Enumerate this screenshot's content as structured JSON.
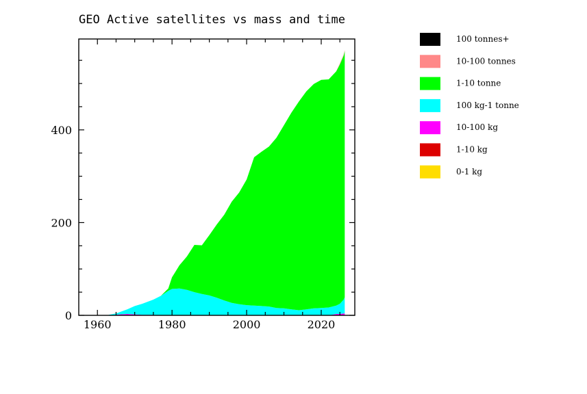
{
  "chart_data": {
    "type": "area",
    "stacked": true,
    "title": "GEO Active satellites vs mass and time",
    "xlabel": "",
    "ylabel": "",
    "xlim": [
      1955,
      2029
    ],
    "ylim": [
      0,
      596
    ],
    "x_ticks": [
      1960,
      1980,
      2000,
      2020
    ],
    "y_ticks": [
      0,
      200,
      400
    ],
    "grid": false,
    "legend_position": "right",
    "x": [
      1963,
      1965,
      1966,
      1968,
      1970,
      1972,
      1975,
      1977,
      1979,
      1980,
      1982,
      1984,
      1986,
      1988,
      1990,
      1992,
      1994,
      1996,
      1998,
      2000,
      2002,
      2004,
      2006,
      2008,
      2010,
      2012,
      2014,
      2016,
      2018,
      2020,
      2022,
      2024,
      2025,
      2026,
      2026.3
    ],
    "series": [
      {
        "name": "0-1 kg",
        "color": "#ffdd00",
        "values": [
          0,
          0,
          0,
          0,
          0,
          0,
          0,
          0,
          0,
          0,
          0,
          0,
          0,
          0,
          0,
          0,
          0,
          0,
          0,
          0,
          0,
          0,
          0,
          0,
          0,
          0,
          0,
          0,
          0,
          0,
          0,
          0,
          0,
          0,
          0
        ]
      },
      {
        "name": "1-10 kg",
        "color": "#dd0000",
        "values": [
          0,
          0,
          0,
          0,
          0,
          0,
          0,
          0,
          0,
          0,
          0,
          0,
          0,
          0,
          0,
          0,
          0,
          0,
          0,
          0,
          0,
          0,
          0,
          0,
          0,
          0,
          0,
          0,
          0,
          0,
          0,
          0,
          0,
          0,
          0
        ]
      },
      {
        "name": "10-100 kg",
        "color": "#ff00ff",
        "values": [
          0,
          1,
          2,
          3,
          2,
          1,
          1,
          0,
          0,
          0,
          0,
          0,
          0,
          0,
          0,
          0,
          0,
          0,
          0,
          0,
          0,
          0,
          0,
          0,
          0,
          0,
          0,
          0,
          0,
          0,
          0,
          3,
          3,
          4,
          4
        ]
      },
      {
        "name": "100 kg-1 tonne",
        "color": "#00ffff",
        "values": [
          1,
          3,
          5,
          10,
          18,
          24,
          33,
          42,
          53,
          57,
          58,
          55,
          50,
          46,
          43,
          38,
          32,
          27,
          24,
          22,
          21,
          20,
          19,
          16,
          15,
          13,
          11,
          13,
          15,
          16,
          17,
          18,
          22,
          30,
          35
        ]
      },
      {
        "name": "1-10 tonne",
        "color": "#00ff00",
        "values": [
          0,
          0,
          0,
          0,
          0,
          0,
          0,
          0,
          5,
          25,
          50,
          72,
          102,
          105,
          130,
          158,
          185,
          218,
          241,
          271,
          320,
          333,
          345,
          367,
          395,
          424,
          450,
          470,
          484,
          492,
          492,
          505,
          516,
          526,
          531
        ]
      },
      {
        "name": "10-100 tonnes",
        "color": "#ff8888",
        "values": [
          0,
          0,
          0,
          0,
          0,
          0,
          0,
          0,
          0,
          0,
          0,
          0,
          0,
          0,
          0,
          0,
          0,
          0,
          0,
          0,
          0,
          0,
          0,
          0,
          0,
          0,
          0,
          0,
          0,
          0,
          0,
          0,
          2,
          2,
          2
        ]
      },
      {
        "name": "100 tonnes+",
        "color": "#000000",
        "values": [
          0,
          0,
          0,
          0,
          0,
          0,
          0,
          0,
          0,
          0,
          0,
          0,
          0,
          0,
          0,
          0,
          0,
          0,
          0,
          0,
          0,
          0,
          0,
          0,
          0,
          0,
          0,
          0,
          0,
          0,
          0,
          0,
          0,
          0,
          0
        ]
      }
    ],
    "legend_order": [
      "100 tonnes+",
      "10-100 tonnes",
      "1-10 tonne",
      "100 kg-1 tonne",
      "10-100 kg",
      "1-10 kg",
      "0-1 kg"
    ]
  }
}
